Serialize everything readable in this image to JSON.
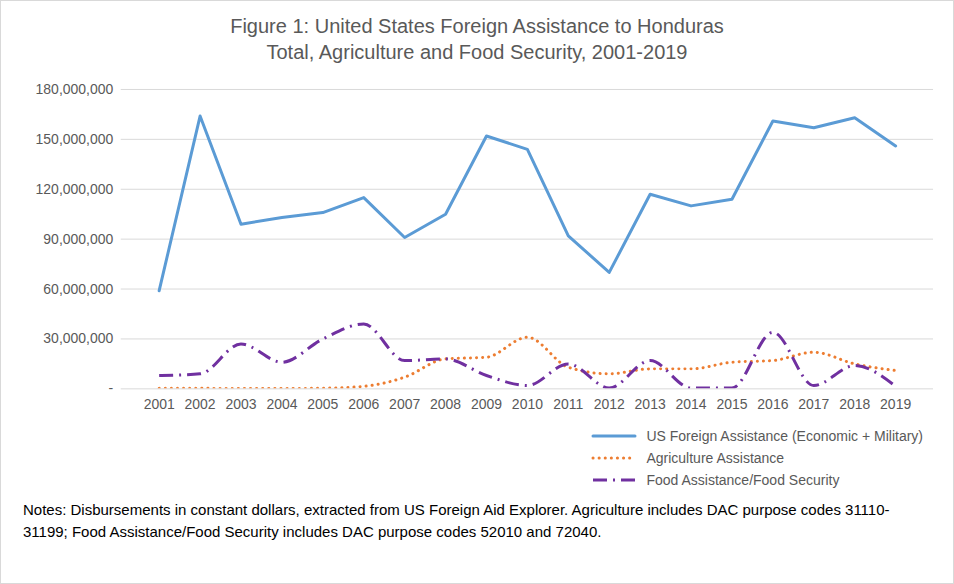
{
  "chart_data": {
    "type": "line",
    "title": "Figure 1: United States Foreign Assistance to Honduras",
    "subtitle": "Total, Agriculture and Food Security, 2001-2019",
    "caption": "Notes: Disbursements in constant dollars, extracted from US Foreign Aid Explorer. Agriculture includes DAC purpose codes 31110-31199; Food Assistance/Food Security includes DAC purpose codes 52010 and 72040.",
    "categories": [
      "2001",
      "2002",
      "2003",
      "2004",
      "2005",
      "2006",
      "2007",
      "2008",
      "2009",
      "2010",
      "2011",
      "2012",
      "2013",
      "2014",
      "2015",
      "2016",
      "2017",
      "2018",
      "2019"
    ],
    "series": [
      {
        "name": "US Foreign Assistance (Economic + Military)",
        "color": "#5b9bd5",
        "line_style": "solid",
        "values": [
          59000000,
          164000000,
          99000000,
          103000000,
          106000000,
          115000000,
          91000000,
          105000000,
          152000000,
          144000000,
          92000000,
          70000000,
          117000000,
          110000000,
          114000000,
          161000000,
          157000000,
          163000000,
          146000000
        ]
      },
      {
        "name": "Agriculture Assistance",
        "color": "#ed7d31",
        "line_style": "dotted",
        "values": [
          300000,
          300000,
          200000,
          200000,
          400000,
          1500000,
          7000000,
          18000000,
          19000000,
          31000000,
          13000000,
          9000000,
          12000000,
          12000000,
          16000000,
          17000000,
          22000000,
          15000000,
          11000000
        ]
      },
      {
        "name": "Food Assistance/Food Security",
        "color": "#7030a0",
        "line_style": "dashdot",
        "values": [
          8000000,
          9000000,
          27000000,
          16000000,
          30000000,
          39000000,
          17000000,
          18000000,
          8000000,
          2000000,
          15000000,
          500000,
          17000000,
          500000,
          500000,
          34000000,
          2000000,
          14000000,
          1500000
        ]
      }
    ],
    "ylim": [
      0,
      180000000
    ],
    "yticks": [
      {
        "value": 0,
        "label": "-"
      },
      {
        "value": 30000000,
        "label": "30,000,000"
      },
      {
        "value": 60000000,
        "label": "60,000,000"
      },
      {
        "value": 90000000,
        "label": "90,000,000"
      },
      {
        "value": 120000000,
        "label": "120,000,000"
      },
      {
        "value": 150000000,
        "label": "150,000,000"
      },
      {
        "value": 180000000,
        "label": "180,000,000"
      }
    ],
    "grid": true,
    "legend": "bottom-right"
  }
}
